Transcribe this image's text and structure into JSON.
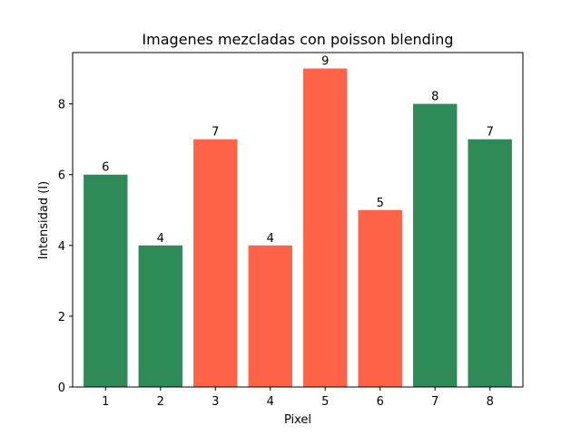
{
  "chart_data": {
    "type": "bar",
    "title": "Imagenes mezcladas con poisson blending",
    "xlabel": "Pixel",
    "ylabel": "Intensidad (I)",
    "categories": [
      "1",
      "2",
      "3",
      "4",
      "5",
      "6",
      "7",
      "8"
    ],
    "values": [
      6,
      4,
      7,
      4,
      9,
      5,
      8,
      7
    ],
    "data_labels": [
      "6",
      "4",
      "7",
      "4",
      "9",
      "5",
      "8",
      "7"
    ],
    "bar_colors": [
      "#2e8b57",
      "#2e8b57",
      "#ff6347",
      "#ff6347",
      "#ff6347",
      "#ff6347",
      "#2e8b57",
      "#2e8b57"
    ],
    "ylim": [
      0,
      9.45
    ],
    "yticks": [
      0,
      2,
      4,
      6,
      8
    ],
    "grid": false,
    "legend": "none"
  }
}
